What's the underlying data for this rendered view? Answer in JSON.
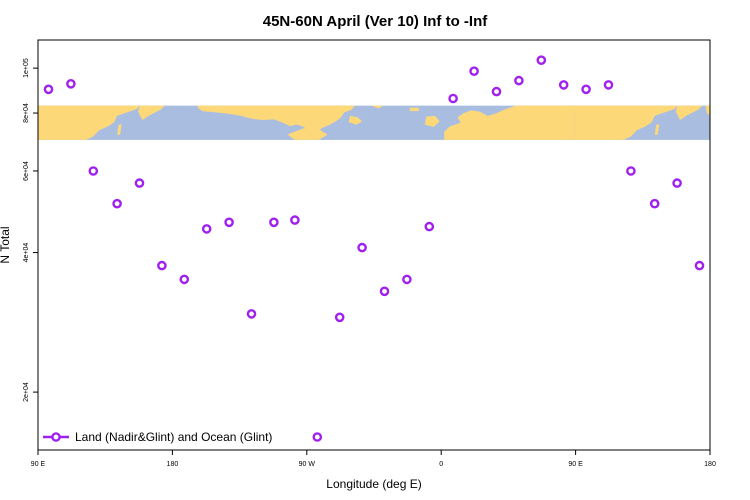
{
  "chart_data": {
    "type": "scatter",
    "title": "45N-60N April (Ver 10)   Inf to -Inf",
    "xlabel": "Longitude (deg E)",
    "ylabel": "N Total",
    "x_ticks": [
      {
        "value": 90,
        "label": "90 E"
      },
      {
        "value": 180,
        "label": "180"
      },
      {
        "value": 270,
        "label": "90 W"
      },
      {
        "value": 360,
        "label": "0"
      },
      {
        "value": 450,
        "label": "90 E"
      },
      {
        "value": 540,
        "label": "180"
      }
    ],
    "y_ticks": [
      {
        "value": 20000,
        "label": "2e+04"
      },
      {
        "value": 40000,
        "label": "4e+04"
      },
      {
        "value": 60000,
        "label": "6e+04"
      },
      {
        "value": 80000,
        "label": "8e+04"
      },
      {
        "value": 100000,
        "label": "1e+05"
      }
    ],
    "xlim": [
      90,
      540
    ],
    "ylim": [
      15000,
      115000
    ],
    "y_scale": "log",
    "map_band": {
      "y_top": 83000,
      "y_bottom": 70000,
      "ocean_color": "#a9bde0",
      "land_color": "#fdd879"
    },
    "series": [
      {
        "name": "Land (Nadir&Glint) and Ocean (Glint)",
        "color": "#a020f0",
        "marker": "open-circle",
        "points": [
          {
            "x": 97,
            "y": 90000
          },
          {
            "x": 112,
            "y": 92500
          },
          {
            "x": 127,
            "y": 60000
          },
          {
            "x": 143,
            "y": 51000
          },
          {
            "x": 158,
            "y": 56500
          },
          {
            "x": 173,
            "y": 37500
          },
          {
            "x": 188,
            "y": 35000
          },
          {
            "x": 203,
            "y": 45000
          },
          {
            "x": 218,
            "y": 46500
          },
          {
            "x": 233,
            "y": 29500
          },
          {
            "x": 248,
            "y": 46500
          },
          {
            "x": 262,
            "y": 47000
          },
          {
            "x": 277,
            "y": 16000
          },
          {
            "x": 292,
            "y": 29000
          },
          {
            "x": 307,
            "y": 41000
          },
          {
            "x": 322,
            "y": 33000
          },
          {
            "x": 337,
            "y": 35000
          },
          {
            "x": 352,
            "y": 45500
          },
          {
            "x": 368,
            "y": 86000
          },
          {
            "x": 382,
            "y": 98500
          },
          {
            "x": 397,
            "y": 89000
          },
          {
            "x": 412,
            "y": 94000
          },
          {
            "x": 427,
            "y": 104000
          },
          {
            "x": 442,
            "y": 92000
          },
          {
            "x": 457,
            "y": 90000
          },
          {
            "x": 472,
            "y": 92000
          },
          {
            "x": 487,
            "y": 60000
          },
          {
            "x": 503,
            "y": 51000
          },
          {
            "x": 518,
            "y": 56500
          },
          {
            "x": 533,
            "y": 37500
          }
        ]
      }
    ],
    "legend": {
      "position": "bottom-left",
      "label": "Land (Nadir&Glint) and Ocean (Glint)"
    }
  }
}
